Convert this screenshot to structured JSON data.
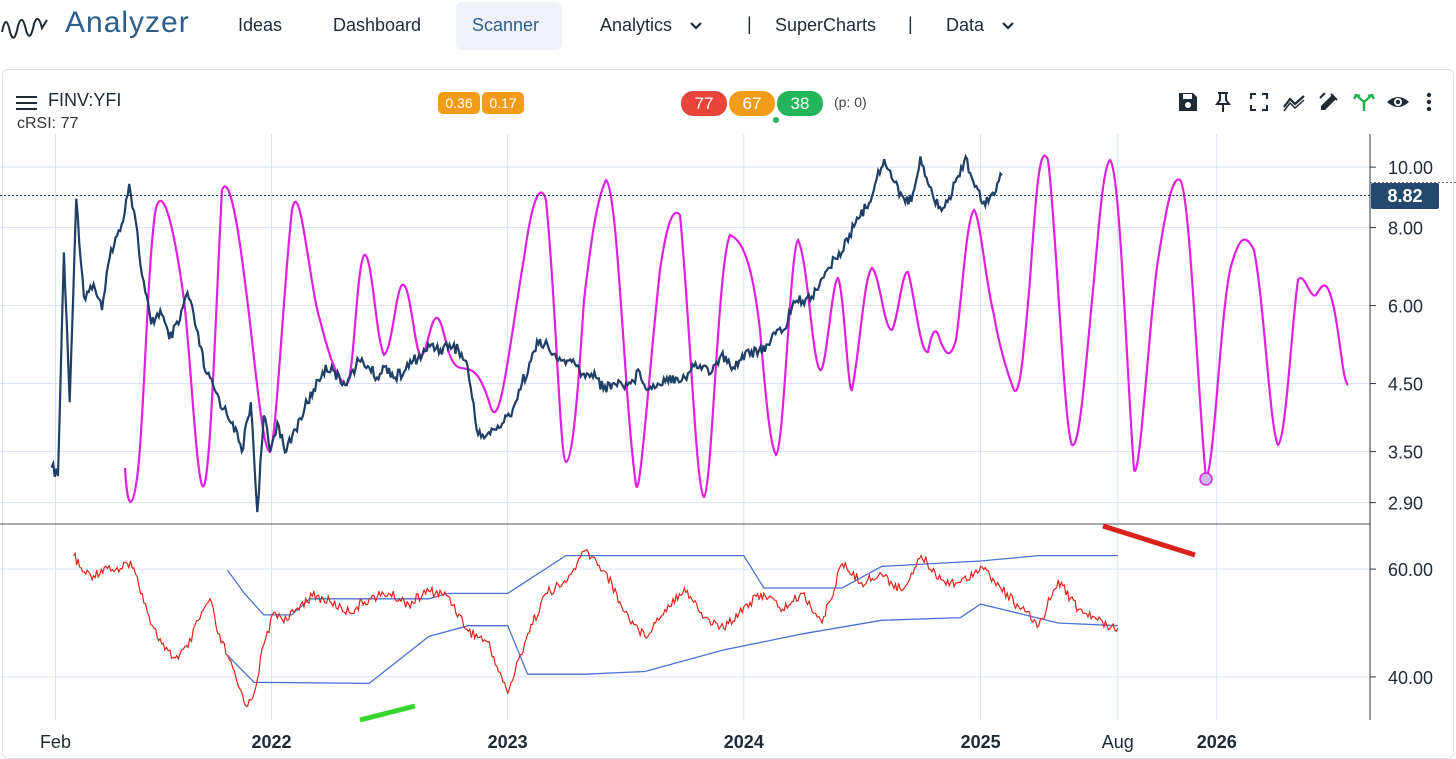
{
  "nav": {
    "logo_text": "Analyzer",
    "items": [
      {
        "label": "Ideas"
      },
      {
        "label": "Dashboard"
      },
      {
        "label": "Scanner",
        "active": true
      },
      {
        "label": "Analytics",
        "dropdown": true
      },
      {
        "label": "SuperCharts"
      },
      {
        "label": "Data",
        "dropdown": true
      }
    ],
    "separator": "|"
  },
  "chart_header": {
    "symbol": "FINV:YFI",
    "indicator": "cRSI: 77",
    "small_badges": [
      {
        "text": "0.36",
        "color": "#f39c1a"
      },
      {
        "text": "0.17",
        "color": "#f39c1a"
      }
    ],
    "big_badges": [
      {
        "text": "77",
        "color": "#e8443a"
      },
      {
        "text": "67",
        "color": "#f39c1a"
      },
      {
        "text": "38",
        "color": "#22b55a"
      }
    ],
    "p_count": "(p: 0)"
  },
  "toolbar_icons": [
    "save-icon",
    "pin-icon",
    "fullscreen-icon",
    "trend-icon",
    "draw-icon",
    "fork-icon",
    "eye-icon",
    "more-vert-icon"
  ],
  "current_price_label": "8.82",
  "colors": {
    "price_line": "#1e3f66",
    "oscillator_line": "#e020e0",
    "crsi_line": "#e0241a",
    "band_line": "#4a72d2",
    "divergence_bullish": "#36d62e",
    "divergence_bearish": "#d9221a",
    "price_tag_bg": "#24496e",
    "accent": "#2b5e8c"
  },
  "chart_data": [
    {
      "type": "line",
      "title": "",
      "x_labels": [
        "Feb",
        "2022",
        "2023",
        "2024",
        "2025",
        "Aug",
        "2026"
      ],
      "y_axis_labels": [
        "10.00",
        "8.00",
        "6.00",
        "4.50",
        "3.50",
        "2.90"
      ],
      "log_scale": true,
      "ylim": [
        2.7,
        11.3
      ],
      "grid": true,
      "current_value": 8.82,
      "series": [
        {
          "name": "",
          "color": "#1e3f66",
          "points": [
            [
              "2021-01-26",
              3.3
            ],
            [
              "2021-02-05",
              3.2
            ],
            [
              "2021-02-14",
              7.3
            ],
            [
              "2021-02-23",
              4.2
            ],
            [
              "2021-03-05",
              8.9
            ],
            [
              "2021-03-17",
              6.2
            ],
            [
              "2021-04-01",
              6.5
            ],
            [
              "2021-04-14",
              5.9
            ],
            [
              "2021-04-28",
              7.4
            ],
            [
              "2021-05-12",
              7.9
            ],
            [
              "2021-05-26",
              9.4
            ],
            [
              "2021-06-05",
              8.2
            ],
            [
              "2021-06-15",
              6.7
            ],
            [
              "2021-06-29",
              5.6
            ],
            [
              "2021-07-13",
              5.9
            ],
            [
              "2021-07-27",
              5.3
            ],
            [
              "2021-08-10",
              5.6
            ],
            [
              "2021-08-24",
              6.3
            ],
            [
              "2021-09-07",
              5.5
            ],
            [
              "2021-09-21",
              4.7
            ],
            [
              "2021-10-05",
              4.4
            ],
            [
              "2021-10-19",
              4.1
            ],
            [
              "2021-11-02",
              3.9
            ],
            [
              "2021-11-16",
              3.5
            ],
            [
              "2021-11-30",
              4.2
            ],
            [
              "2021-12-10",
              2.8
            ],
            [
              "2021-12-20",
              4.0
            ],
            [
              "2021-12-30",
              3.5
            ],
            [
              "2022-01-10",
              3.9
            ],
            [
              "2022-01-24",
              3.5
            ],
            [
              "2022-02-07",
              3.8
            ],
            [
              "2022-02-21",
              4.1
            ],
            [
              "2022-03-07",
              4.4
            ],
            [
              "2022-03-21",
              4.7
            ],
            [
              "2022-04-04",
              4.8
            ],
            [
              "2022-04-18",
              4.5
            ],
            [
              "2022-05-02",
              4.6
            ],
            [
              "2022-05-16",
              4.9
            ],
            [
              "2022-05-30",
              4.8
            ],
            [
              "2022-06-13",
              4.6
            ],
            [
              "2022-06-27",
              4.8
            ],
            [
              "2022-07-11",
              4.6
            ],
            [
              "2022-07-25",
              4.7
            ],
            [
              "2022-08-08",
              4.9
            ],
            [
              "2022-08-22",
              5.0
            ],
            [
              "2022-09-05",
              5.2
            ],
            [
              "2022-09-19",
              5.1
            ],
            [
              "2022-10-03",
              5.2
            ],
            [
              "2022-10-17",
              5.1
            ],
            [
              "2022-10-31",
              4.8
            ],
            [
              "2022-11-14",
              3.8
            ],
            [
              "2022-11-28",
              3.7
            ],
            [
              "2022-12-12",
              3.8
            ],
            [
              "2022-12-26",
              3.9
            ],
            [
              "2023-01-09",
              4.1
            ],
            [
              "2023-01-23",
              4.5
            ],
            [
              "2023-02-06",
              4.9
            ],
            [
              "2023-02-20",
              5.3
            ],
            [
              "2023-03-06",
              5.1
            ],
            [
              "2023-03-20",
              4.9
            ],
            [
              "2023-04-03",
              4.9
            ],
            [
              "2023-04-17",
              4.8
            ],
            [
              "2023-05-01",
              4.6
            ],
            [
              "2023-05-15",
              4.7
            ],
            [
              "2023-05-29",
              4.4
            ],
            [
              "2023-06-12",
              4.5
            ],
            [
              "2023-06-26",
              4.5
            ],
            [
              "2023-07-10",
              4.5
            ],
            [
              "2023-07-24",
              4.7
            ],
            [
              "2023-08-07",
              4.4
            ],
            [
              "2023-08-21",
              4.5
            ],
            [
              "2023-09-04",
              4.6
            ],
            [
              "2023-09-18",
              4.6
            ],
            [
              "2023-10-02",
              4.6
            ],
            [
              "2023-10-16",
              4.8
            ],
            [
              "2023-10-30",
              4.8
            ],
            [
              "2023-11-13",
              4.7
            ],
            [
              "2023-11-27",
              5.0
            ],
            [
              "2023-12-11",
              4.8
            ],
            [
              "2023-12-25",
              4.9
            ],
            [
              "2024-01-08",
              5.1
            ],
            [
              "2024-01-22",
              5.0
            ],
            [
              "2024-02-05",
              5.2
            ],
            [
              "2024-02-19",
              5.4
            ],
            [
              "2024-03-04",
              5.5
            ],
            [
              "2024-03-18",
              6.1
            ],
            [
              "2024-04-01",
              6.1
            ],
            [
              "2024-04-15",
              6.2
            ],
            [
              "2024-04-29",
              6.6
            ],
            [
              "2024-05-13",
              6.9
            ],
            [
              "2024-05-27",
              7.3
            ],
            [
              "2024-06-10",
              7.6
            ],
            [
              "2024-06-24",
              8.3
            ],
            [
              "2024-07-08",
              8.6
            ],
            [
              "2024-07-22",
              9.4
            ],
            [
              "2024-08-05",
              10.3
            ],
            [
              "2024-08-19",
              9.5
            ],
            [
              "2024-09-02",
              9.0
            ],
            [
              "2024-09-16",
              8.8
            ],
            [
              "2024-09-30",
              10.4
            ],
            [
              "2024-10-14",
              9.3
            ],
            [
              "2024-10-28",
              8.6
            ],
            [
              "2024-11-11",
              8.8
            ],
            [
              "2024-11-25",
              9.6
            ],
            [
              "2024-12-09",
              10.4
            ],
            [
              "2024-12-23",
              9.3
            ],
            [
              "2025-01-06",
              8.8
            ],
            [
              "2025-01-20",
              9.1
            ],
            [
              "2025-02-03",
              9.7
            ]
          ]
        }
      ]
    },
    {
      "type": "line",
      "title": "",
      "y_axis_labels": [
        "60.00",
        "40.00"
      ],
      "ylim": [
        32,
        68
      ],
      "grid": true,
      "series": [
        {
          "name": "",
          "color": "#e0241a",
          "points": [
            [
              "2021-03-01",
              62.5
            ],
            [
              "2021-03-15",
              59.5
            ],
            [
              "2021-04-01",
              58.8
            ],
            [
              "2021-04-20",
              60.5
            ],
            [
              "2021-05-10",
              59.5
            ],
            [
              "2021-05-28",
              61.5
            ],
            [
              "2021-06-15",
              55.5
            ],
            [
              "2021-07-01",
              49.5
            ],
            [
              "2021-07-20",
              45.0
            ],
            [
              "2021-08-05",
              43.5
            ],
            [
              "2021-08-25",
              45.5
            ],
            [
              "2021-09-10",
              50.5
            ],
            [
              "2021-09-28",
              54.5
            ],
            [
              "2021-10-10",
              48.0
            ],
            [
              "2021-10-25",
              44.0
            ],
            [
              "2021-11-10",
              38.5
            ],
            [
              "2021-11-25",
              34.5
            ],
            [
              "2021-12-05",
              37.0
            ],
            [
              "2021-12-20",
              46.0
            ],
            [
              "2022-01-05",
              52.0
            ],
            [
              "2022-01-25",
              50.5
            ],
            [
              "2022-02-15",
              53.5
            ],
            [
              "2022-03-05",
              55.0
            ],
            [
              "2022-04-01",
              54.0
            ],
            [
              "2022-05-01",
              52.0
            ],
            [
              "2022-06-01",
              54.5
            ],
            [
              "2022-07-01",
              55.5
            ],
            [
              "2022-08-01",
              53.5
            ],
            [
              "2022-09-01",
              56.0
            ],
            [
              "2022-10-01",
              55.0
            ],
            [
              "2022-11-01",
              48.5
            ],
            [
              "2022-12-01",
              46.5
            ],
            [
              "2023-01-01",
              37.0
            ],
            [
              "2023-02-01",
              48.0
            ],
            [
              "2023-03-01",
              55.5
            ],
            [
              "2023-04-01",
              57.5
            ],
            [
              "2023-05-01",
              63.5
            ],
            [
              "2023-06-01",
              59.5
            ],
            [
              "2023-07-01",
              52.0
            ],
            [
              "2023-08-01",
              47.5
            ],
            [
              "2023-09-01",
              52.5
            ],
            [
              "2023-10-01",
              56.5
            ],
            [
              "2023-11-01",
              51.0
            ],
            [
              "2023-12-01",
              49.0
            ],
            [
              "2024-01-01",
              53.0
            ],
            [
              "2024-02-01",
              55.5
            ],
            [
              "2024-03-01",
              52.5
            ],
            [
              "2024-04-01",
              55.5
            ],
            [
              "2024-05-01",
              50.0
            ],
            [
              "2024-06-01",
              61.0
            ],
            [
              "2024-07-01",
              57.5
            ],
            [
              "2024-08-01",
              59.0
            ],
            [
              "2024-09-01",
              56.0
            ],
            [
              "2024-10-01",
              62.5
            ],
            [
              "2024-11-01",
              58.0
            ],
            [
              "2024-12-01",
              57.5
            ],
            [
              "2025-01-01",
              60.5
            ],
            [
              "2025-02-01",
              56.5
            ],
            [
              "2025-03-01",
              53.0
            ],
            [
              "2025-04-01",
              49.5
            ],
            [
              "2025-05-01",
              58.0
            ],
            [
              "2025-06-01",
              52.5
            ],
            [
              "2025-07-01",
              50.5
            ],
            [
              "2025-08-01",
              49.0
            ]
          ]
        },
        {
          "name": "",
          "color": "#4a72d2",
          "points": [
            [
              "2021-10-25",
              59.8
            ],
            [
              "2021-11-20",
              55.5
            ],
            [
              "2021-12-20",
              51.5
            ],
            [
              "2022-02-01",
              51.5
            ],
            [
              "2022-03-01",
              54.5
            ],
            [
              "2022-09-01",
              54.5
            ],
            [
              "2022-10-01",
              55.5
            ],
            [
              "2023-01-01",
              55.5
            ],
            [
              "2023-04-01",
              62.5
            ],
            [
              "2024-01-01",
              62.5
            ],
            [
              "2024-02-01",
              56.5
            ],
            [
              "2024-06-01",
              56.5
            ],
            [
              "2024-08-01",
              60.5
            ],
            [
              "2025-01-01",
              61.5
            ],
            [
              "2025-04-01",
              62.5
            ],
            [
              "2025-08-01",
              62.5
            ]
          ]
        },
        {
          "name": "",
          "color": "#4a72d2",
          "points": [
            [
              "2021-10-25",
              44.0
            ],
            [
              "2021-12-05",
              39.0
            ],
            [
              "2022-06-01",
              38.8
            ],
            [
              "2022-09-01",
              47.5
            ],
            [
              "2022-11-01",
              49.5
            ],
            [
              "2023-01-01",
              49.5
            ],
            [
              "2023-02-01",
              40.5
            ],
            [
              "2023-05-01",
              40.5
            ],
            [
              "2023-08-01",
              41.0
            ],
            [
              "2023-12-01",
              45.0
            ],
            [
              "2024-04-01",
              48.0
            ],
            [
              "2024-08-01",
              50.5
            ],
            [
              "2024-12-01",
              51.0
            ],
            [
              "2025-01-01",
              53.5
            ],
            [
              "2025-05-01",
              50.0
            ],
            [
              "2025-08-01",
              49.5
            ]
          ]
        }
      ]
    }
  ]
}
